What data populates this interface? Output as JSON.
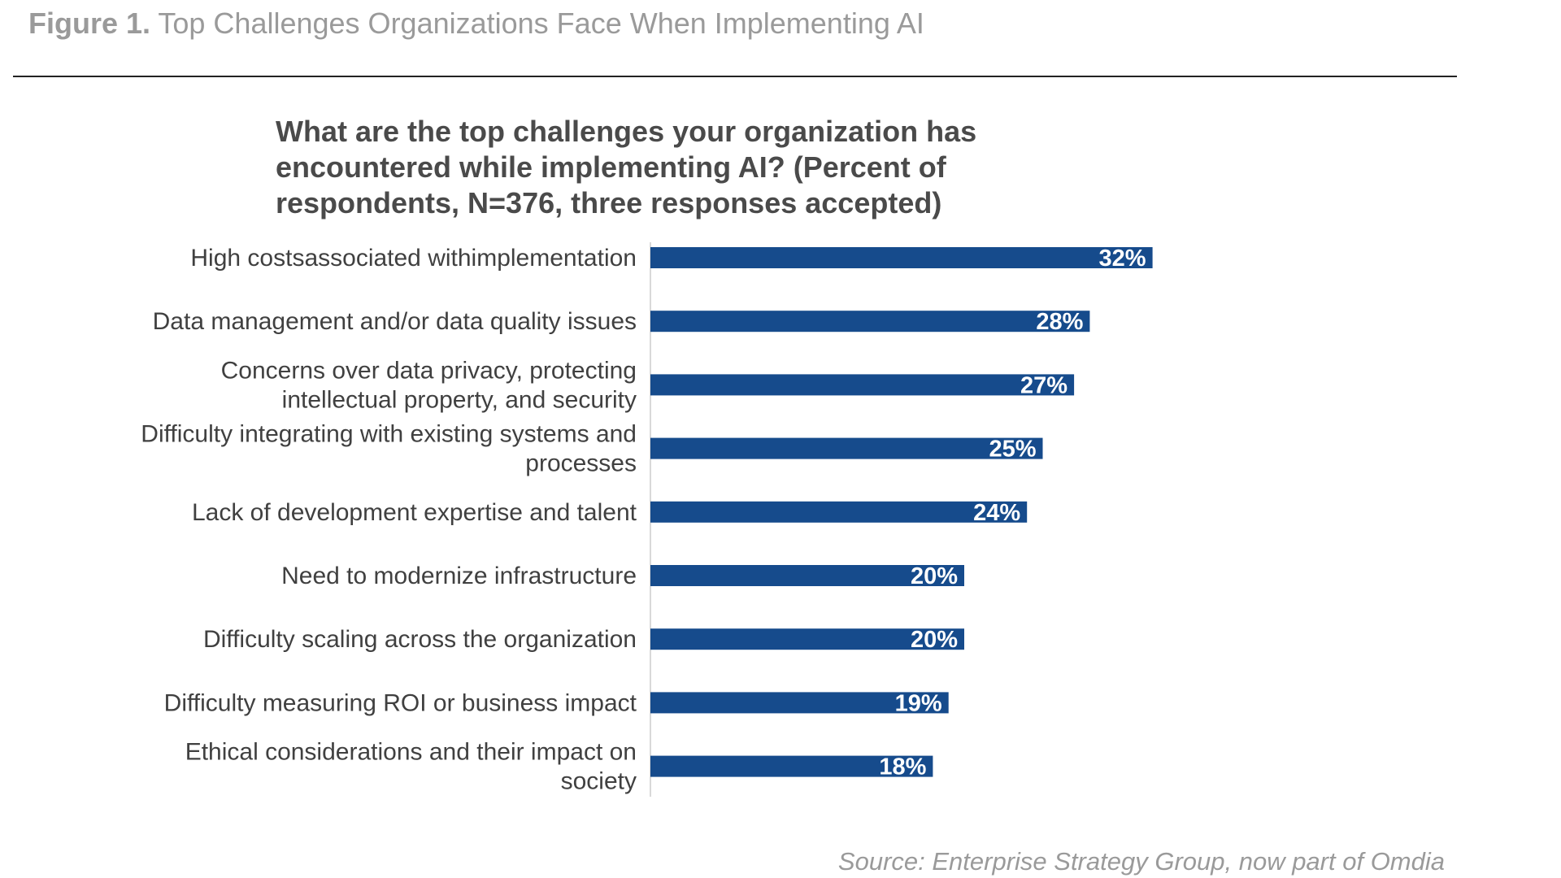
{
  "figure": {
    "label": "Figure 1.",
    "title": "Top Challenges Organizations Face When Implementing AI"
  },
  "chart_data": {
    "type": "bar",
    "orientation": "horizontal",
    "title": "What are the top challenges your organization has encountered while implementing AI? (Percent of respondents, N=376, three responses accepted)",
    "categories": [
      [
        "High costsassociated withimplementation"
      ],
      [
        "Data management and/or data quality issues"
      ],
      [
        "Concerns over data privacy, protecting",
        "intellectual property, and security"
      ],
      [
        "Difficulty integrating with existing systems and",
        "processes"
      ],
      [
        "Lack of development expertise and talent"
      ],
      [
        "Need to modernize infrastructure"
      ],
      [
        "Difficulty scaling across the organization"
      ],
      [
        "Difficulty measuring ROI or business impact"
      ],
      [
        "Ethical considerations and their impact on",
        "society"
      ]
    ],
    "values": [
      32,
      28,
      27,
      25,
      24,
      20,
      20,
      19,
      18
    ],
    "value_labels": [
      "32%",
      "28%",
      "27%",
      "25%",
      "24%",
      "20%",
      "20%",
      "19%",
      "18%"
    ],
    "bar_color": "#164B8C",
    "axis_color": "#D9D9D9",
    "grid": false,
    "legend": false
  },
  "source": "Source: Enterprise Strategy Group, now part of Omdia"
}
